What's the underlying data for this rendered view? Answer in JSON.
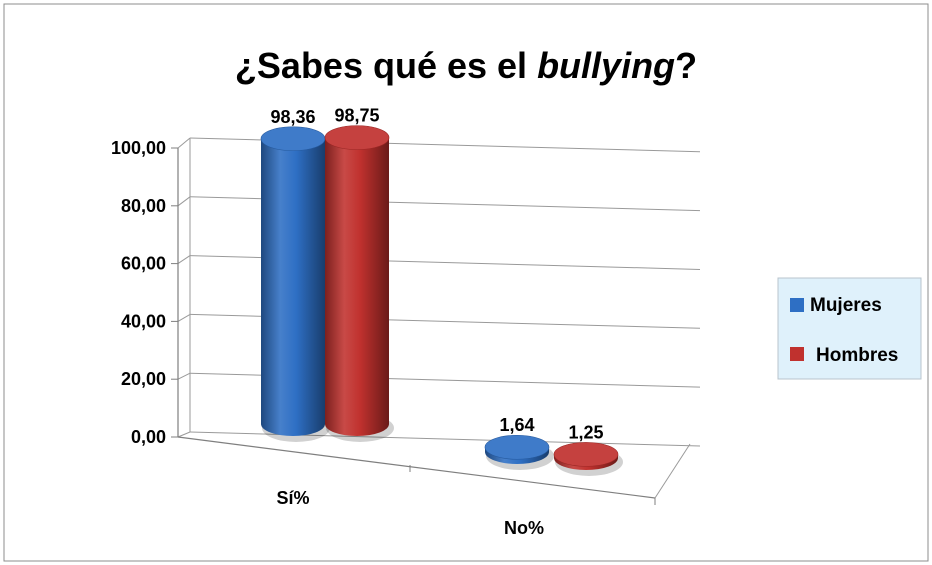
{
  "chart_data": {
    "type": "bar",
    "title_main": "¿Sabes qué es el ",
    "title_italic": "bullying",
    "title_end": "?",
    "categories": [
      "Sí%",
      "No%"
    ],
    "series": [
      {
        "name": "Mujeres",
        "values": [
          98.36,
          1.64
        ],
        "labels": [
          "98,36",
          "1,64"
        ],
        "color": "#2e6fc4"
      },
      {
        "name": "Hombres",
        "values": [
          98.75,
          1.25
        ],
        "labels": [
          "98,75",
          "1,25"
        ],
        "color": "#c0312e"
      }
    ],
    "yticks": [
      "0,00",
      "20,00",
      "40,00",
      "60,00",
      "80,00",
      "100,00"
    ],
    "ylim": [
      0,
      100
    ],
    "grid": true,
    "legend_position": "right",
    "legend_background": "#dff1fb",
    "style": "3d-cylinder"
  }
}
